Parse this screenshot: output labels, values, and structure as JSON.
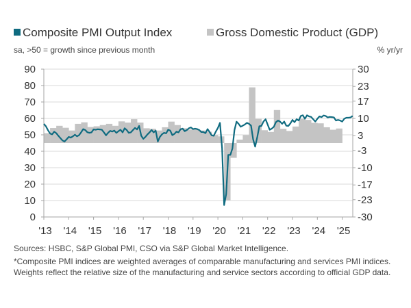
{
  "legend": {
    "pmi_label": "Composite PMI Output Index",
    "gdp_label": "Gross Domestic Product (GDP)",
    "pmi_sub": "sa, >50 = growth since previous month",
    "gdp_sub": "% yr/yr"
  },
  "notes": {
    "sources": "Sources: HSBC, S&P Global PMI, CSO via S&P Global Market Intelligence.",
    "footnote": "*Composite PMI indices are weighted averages of comparable manufacturing and services PMI indices. Weights reflect the relative size of the manufacturing and service sectors according to official GDP data."
  },
  "colors": {
    "pmi": "#0f6b80",
    "gdp": "#c4c4c4",
    "grid": "#d9d9d9",
    "axis": "#a6a6a6"
  },
  "chart_data": {
    "type": "bar+line",
    "grid": true,
    "x_tick_labels": [
      "'13",
      "'14",
      "'15",
      "'16",
      "'17",
      "'18",
      "'19",
      "'20",
      "'21",
      "'22",
      "'23",
      "'24",
      "'25"
    ],
    "x_ticks": [
      2013,
      2014,
      2015,
      2016,
      2017,
      2018,
      2019,
      2020,
      2021,
      2022,
      2023,
      2024,
      2025
    ],
    "left_axis": {
      "range": [
        0,
        90
      ],
      "ticks": [
        0,
        10,
        20,
        30,
        40,
        50,
        60,
        70,
        80,
        90
      ]
    },
    "right_axis": {
      "range": [
        -30,
        30
      ],
      "ticks": [
        -30,
        -23,
        -17,
        -10,
        -3,
        3,
        10,
        17,
        23,
        30
      ]
    },
    "pmi": {
      "name": "Composite PMI Output Index",
      "axis": "left",
      "frequency": "monthly",
      "start": "2013-01",
      "values": [
        56.7,
        55.2,
        52.8,
        50.8,
        50.3,
        51.9,
        51.0,
        49.4,
        48.0,
        46.6,
        45.9,
        47.3,
        48.7,
        48.3,
        49.1,
        50.1,
        49.1,
        49.8,
        51.5,
        53.5,
        52.9,
        51.6,
        51.2,
        51.5,
        53.3,
        53.1,
        53.4,
        53.3,
        53.1,
        51.5,
        49.7,
        51.2,
        52.4,
        52.0,
        52.6,
        51.2,
        52.2,
        53.1,
        51.5,
        54.0,
        52.9,
        51.2,
        51.5,
        52.9,
        54.2,
        53.3,
        55.4,
        49.4,
        47.6,
        48.7,
        50.3,
        51.5,
        52.9,
        51.5,
        52.6,
        45.9,
        48.7,
        50.3,
        51.2,
        50.9,
        53.1,
        52.6,
        49.8,
        50.6,
        51.9,
        51.5,
        53.4,
        53.8,
        52.2,
        52.9,
        54.0,
        54.5,
        53.5,
        53.8,
        53.5,
        52.9,
        51.7,
        51.7,
        51.0,
        53.5,
        51.7,
        49.7,
        49.4,
        52.0,
        54.2,
        57.3,
        42.0,
        7.2,
        13.9,
        37.8,
        37.8,
        41.7,
        52.9,
        58.0,
        56.7,
        54.9,
        55.6,
        56.3,
        57.3,
        56.7,
        55.6,
        47.3,
        42.8,
        48.7,
        55.2,
        55.4,
        58.1,
        59.5,
        56.3,
        53.1,
        53.8,
        54.9,
        57.7,
        58.7,
        58.1,
        56.7,
        58.1,
        55.6,
        55.4,
        57.0,
        59.1,
        57.7,
        59.5,
        58.7,
        61.5,
        61.9,
        59.8,
        61.9,
        61.2,
        60.9,
        59.5,
        58.1,
        59.8,
        61.2,
        60.8,
        61.8,
        61.5,
        60.6,
        60.9,
        60.8,
        60.6,
        58.7,
        59.1,
        58.7,
        58.1,
        59.8,
        60.4,
        60.4,
        60.6,
        61.5
      ]
    },
    "gdp": {
      "name": "Gross Domestic Product (GDP)",
      "axis": "right",
      "frequency": "quarterly",
      "start": "2013-Q1",
      "values": [
        4.0,
        6.1,
        7.0,
        6.2,
        5.1,
        7.8,
        8.4,
        6.5,
        6.8,
        7.3,
        7.8,
        7.0,
        8.8,
        8.3,
        9.7,
        8.3,
        6.0,
        5.8,
        5.1,
        6.4,
        8.7,
        7.3,
        6.0,
        5.5,
        5.6,
        5.1,
        4.6,
        3.2,
        2.7,
        -23.2,
        -6.0,
        1.4,
        3.2,
        22.6,
        9.8,
        5.2,
        4.5,
        13.4,
        5.8,
        4.9,
        6.7,
        9.8,
        9.4,
        8.2,
        8.0,
        6.4,
        5.4,
        5.9
      ]
    }
  }
}
